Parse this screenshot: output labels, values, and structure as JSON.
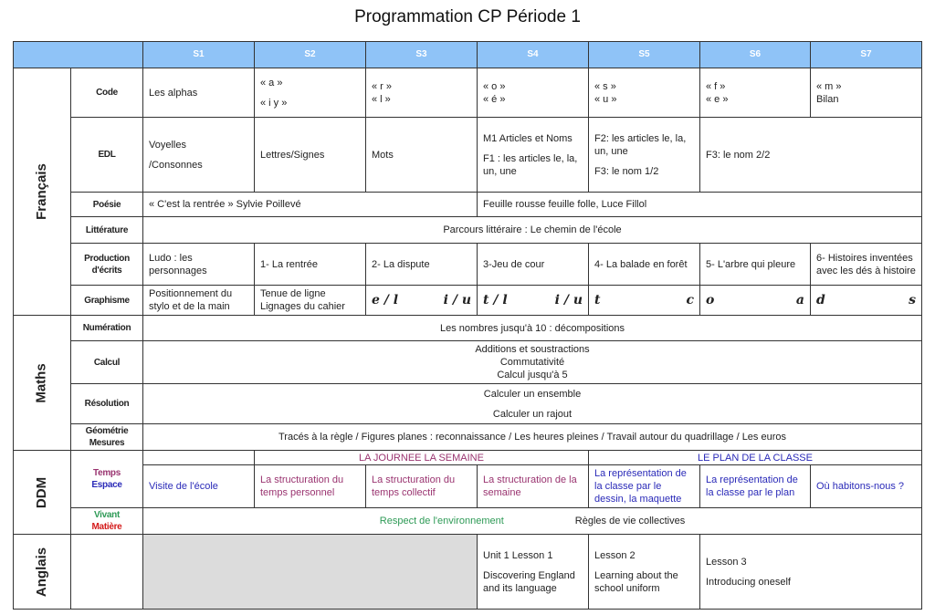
{
  "title": "Programmation CP Période 1",
  "weeks": [
    "S1",
    "S2",
    "S3",
    "S4",
    "S5",
    "S6",
    "S7"
  ],
  "colors": {
    "header": "#8fc3f7",
    "temps": "#9a3470",
    "espace": "#2a2ab8",
    "vivant": "#2e9a56",
    "matiere": "#d41a1a",
    "gray": "#dcdcdc"
  },
  "francais": {
    "subject": "Français",
    "code": {
      "label": "Code",
      "s1": "Les alphas",
      "s2a": "« a »",
      "s2b": "« i y »",
      "s3a": "« r »",
      "s3b": "« l »",
      "s4a": "« o »",
      "s4b": "« é »",
      "s5a": "« s »",
      "s5b": "« u »",
      "s6a": "« f »",
      "s6b": "« e »",
      "s7a": "« m »",
      "s7b": "Bilan"
    },
    "edl": {
      "label": "EDL",
      "s1a": "Voyelles",
      "s1b": "/Consonnes",
      "s2": "Lettres/Signes",
      "s3": "Mots",
      "s4a": "M1 Articles et Noms",
      "s4b": "F1 : les articles le, la, un, une",
      "s5a": "F2: les articles le, la, un, une",
      "s5b": "F3: le nom 1/2",
      "s67": "F3: le nom 2/2"
    },
    "poesie": {
      "label": "Poésie",
      "a": "« C'est la rentrée » Sylvie Poillevé",
      "b": "Feuille rousse feuille folle, Luce Fillol"
    },
    "litterature": {
      "label": "Littérature",
      "text": "Parcours littéraire : Le chemin de l'école"
    },
    "production": {
      "label": "Production d'écrits",
      "s1": "Ludo : les personnages",
      "s2": "1- La rentrée",
      "s3": "2- La dispute",
      "s4": "3-Jeu de cour",
      "s5": "4- La balade en forêt",
      "s6": "5- L'arbre qui pleure",
      "s7": "6- Histoires inventées avec les dés à histoire"
    },
    "graphisme": {
      "label": "Graphisme",
      "s1": "Positionnement du stylo et de la main",
      "s2a": "Tenue de ligne",
      "s2b": "Lignages du cahier",
      "s3a": "e / l",
      "s3b": "i / u",
      "s4a": "t / l",
      "s4b": "i / u",
      "s5a": "t",
      "s5b": "c",
      "s6a": "o",
      "s6b": "a",
      "s7a": "d",
      "s7b": "s"
    }
  },
  "maths": {
    "subject": "Maths",
    "numeration": {
      "label": "Numération",
      "text": "Les nombres jusqu'à 10 : décompositions"
    },
    "calcul": {
      "label": "Calcul",
      "lines": [
        "Additions et soustractions",
        "Commutativité",
        "Calcul jusqu'à 5"
      ]
    },
    "resolution": {
      "label": "Résolution",
      "lines": [
        "Calculer un ensemble",
        "Calculer un rajout"
      ]
    },
    "geometrie": {
      "label1": "Géométrie",
      "label2": "Mesures",
      "text": "Tracés à la règle / Figures planes : reconnaissance / Les heures pleines / Travail autour du quadrillage / Les euros"
    }
  },
  "ddm": {
    "subject": "DDM",
    "temps_label": "Temps",
    "espace_label": "Espace",
    "band1": "LA JOURNEE LA SEMAINE",
    "band2": "LE PLAN DE LA CLASSE",
    "s1": "Visite de l'école",
    "s2": "La structuration du temps personnel",
    "s3": "La structuration du temps collectif",
    "s4": "La structuration de la semaine",
    "s5": "La représentation de la classe par le dessin, la maquette",
    "s6": "La représentation de la classe par le plan",
    "s7": "Où habitons-nous ?",
    "vivant_label": "Vivant",
    "matiere_label": "Matière",
    "vivant_a": "Respect de l'environnement",
    "vivant_b": "Règles de vie collectives"
  },
  "anglais": {
    "subject": "Anglais",
    "s4a": "Unit 1 Lesson 1",
    "s4b": "Discovering England and its language",
    "s5a": "Lesson 2",
    "s5b": "Learning about the school uniform",
    "s67a": "Lesson 3",
    "s67b": "Introducing oneself"
  }
}
